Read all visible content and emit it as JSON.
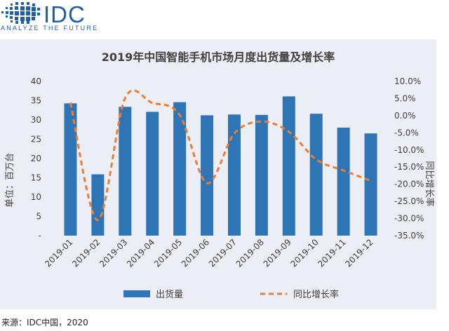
{
  "header": {
    "logo": {
      "text": "IDC",
      "tagline": "ANALYZE THE FUTURE",
      "color": "#1d5fa8"
    }
  },
  "source": "来源：IDC中国，2020",
  "colors": {
    "bar": "#2e75b6",
    "line": "#ed7d31",
    "panel": "#eceef6",
    "axis_text": "#404040"
  },
  "chart_data": {
    "type": "bar",
    "title": "2019年中国智能手机市场月度出货量及增长率",
    "categories": [
      "2019-01",
      "2019-02",
      "2019-03",
      "2019-04",
      "2019-05",
      "2019-06",
      "2019-07",
      "2019-08",
      "2019-09",
      "2019-10",
      "2019-11",
      "2019-12"
    ],
    "series": [
      {
        "name": "出货量",
        "kind": "bar",
        "axis": "left",
        "values": [
          34.3,
          15.9,
          33.4,
          32.1,
          34.6,
          31.2,
          31.4,
          31.3,
          36.1,
          31.6,
          28.0,
          26.5
        ]
      },
      {
        "name": "同比增长率",
        "kind": "line",
        "style": "dashed",
        "axis": "right",
        "values": [
          3.8,
          -30.5,
          5.1,
          3.7,
          0.2,
          -19.7,
          -5.2,
          -1.7,
          -4.7,
          -12.8,
          -16.0,
          -19.0
        ]
      }
    ],
    "ylabel": "单位：百万台",
    "y2label": "同比增长率",
    "ylim": [
      0,
      40
    ],
    "y_ticks": [
      "-",
      "5",
      "10",
      "15",
      "20",
      "25",
      "30",
      "35",
      "40"
    ],
    "y2lim": [
      -35,
      10
    ],
    "y2_ticks": [
      "-35.0%",
      "-30.0%",
      "-25.0%",
      "-20.0%",
      "-15.0%",
      "-10.0%",
      "-5.0%",
      "0.0%",
      "5.0%",
      "10.0%"
    ],
    "grid": false,
    "legend": "bottom"
  }
}
